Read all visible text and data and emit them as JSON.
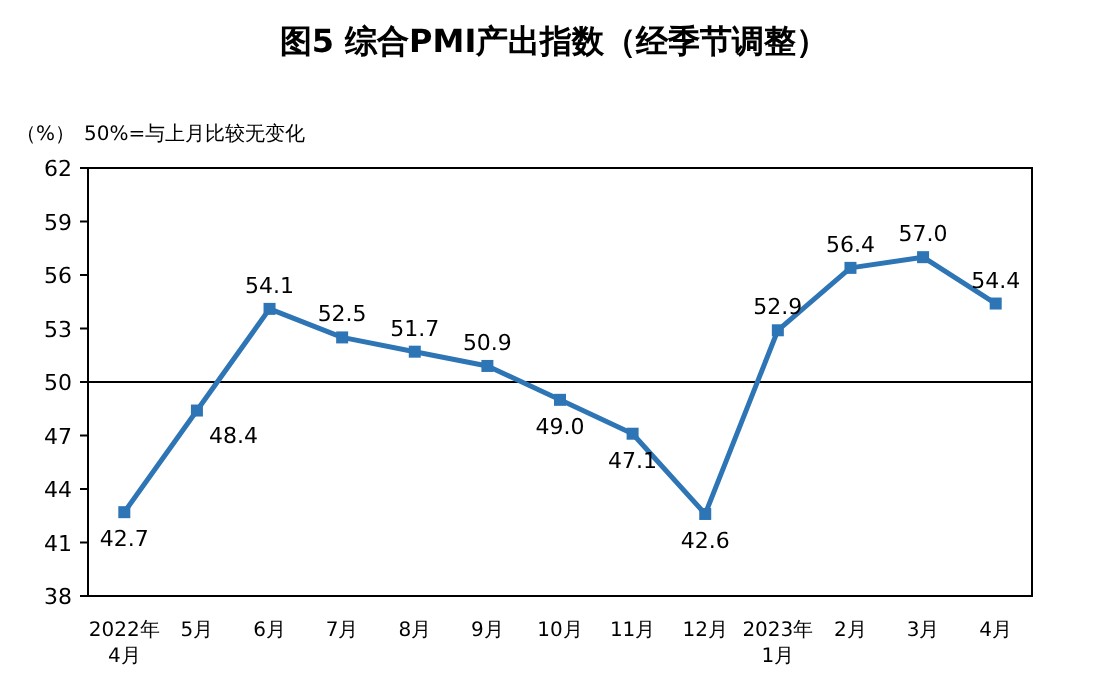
{
  "chart_data": {
    "type": "line",
    "title": "图5 综合PMI产出指数（经季节调整）",
    "ylabel": "（%）",
    "annotations": [
      "50%=与上月比较无变化"
    ],
    "categories": [
      "2022年\n4月",
      "5月",
      "6月",
      "7月",
      "8月",
      "9月",
      "10月",
      "11月",
      "12月",
      "2023年\n1月",
      "2月",
      "3月",
      "4月"
    ],
    "series": [
      {
        "color": "#2e75b6",
        "values": [
          42.7,
          48.4,
          54.1,
          52.5,
          51.7,
          50.9,
          49.0,
          47.1,
          42.6,
          52.9,
          56.4,
          57.0,
          54.4
        ],
        "value_labels": [
          "42.7",
          "48.4",
          "54.1",
          "52.5",
          "51.7",
          "50.9",
          "49.0",
          "47.1",
          "42.6",
          "52.9",
          "56.4",
          "57.0",
          "54.4"
        ]
      }
    ],
    "ylim": [
      38,
      62
    ],
    "yticks": [
      38,
      41,
      44,
      47,
      50,
      53,
      56,
      59,
      62
    ],
    "ref_lines": [
      {
        "axis": "y",
        "value": 50,
        "color": "#000000"
      }
    ],
    "grid": false,
    "marker": "square",
    "line_style": "solid"
  }
}
